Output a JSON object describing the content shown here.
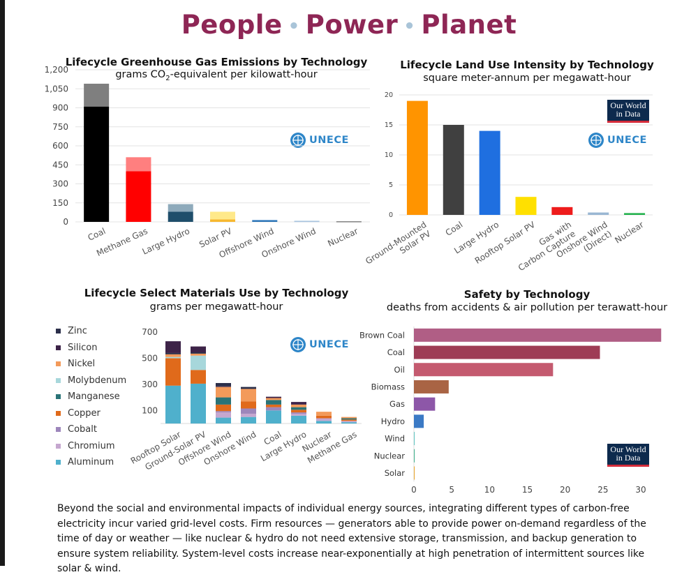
{
  "title": {
    "w1": "People",
    "w2": "Power",
    "w3": "Planet",
    "sep": "•"
  },
  "logos": {
    "unece": "UNECE",
    "owid_line1": "Our World",
    "owid_line2": "in Data"
  },
  "footer": "Beyond the social and environmental impacts of individual energy sources, integrating different types of carbon-free electricity incur varied grid-level costs. Firm resources — generators able to provide power on-demand regardless of the time of day or weather — like nuclear & hydro do not need extensive storage, transmission, and backup generation to ensure system reliability. System-level costs increase near-exponentially at high penetration of intermittent sources like solar & wind.",
  "chart_data": [
    {
      "id": "ghg",
      "type": "bar",
      "title": "Lifecycle Greenhouse Gas Emissions by Technology",
      "subtitle_pre": "grams CO",
      "subtitle_sub": "2",
      "subtitle_post": "-equivalent per kilowatt-hour",
      "categories": [
        "Coal",
        "Methane Gas",
        "Large Hydro",
        "Solar PV",
        "Offshore Wind",
        "Onshore Wind",
        "Nuclear"
      ],
      "series": [
        {
          "name": "low",
          "values": [
            910,
            400,
            80,
            20,
            12,
            7,
            5
          ]
        },
        {
          "name": "range",
          "values": [
            180,
            110,
            60,
            60,
            4,
            4,
            1
          ]
        }
      ],
      "colors_low": [
        "#000000",
        "#ff0000",
        "#1f4e6b",
        "#f7b82f",
        "#2e75b6",
        "#a9c4de",
        "#7f7f7f"
      ],
      "colors_range": [
        "#7f7f7f",
        "#ff7f7f",
        "#8eaabb",
        "#ffe98a",
        "#6fa5d8",
        "#d0e0ee",
        "#bfbfbf"
      ],
      "yticks": [
        "0",
        "150",
        "300",
        "450",
        "600",
        "750",
        "900",
        "1,050",
        "1,200"
      ],
      "ylim": [
        0,
        1200
      ]
    },
    {
      "id": "land",
      "type": "bar",
      "title": "Lifecycle Land Use Intensity by Technology",
      "subtitle": "square meter-annum per megawatt-hour",
      "categories": [
        [
          "Ground-Mounted",
          "Solar PV"
        ],
        [
          "Coal"
        ],
        [
          "Large Hydro"
        ],
        [
          "Rooftop Solar PV"
        ],
        [
          "Gas with",
          "Carbon Capture"
        ],
        [
          "Onshore Wind",
          "(Direct)"
        ],
        [
          "Nuclear"
        ]
      ],
      "values": [
        19,
        15,
        14,
        3,
        1.3,
        0.4,
        0.3
      ],
      "colors": [
        "#ff9400",
        "#404040",
        "#1f6fe0",
        "#ffe000",
        "#ee1c1c",
        "#9ab7d3",
        "#22b14c"
      ],
      "yticks": [
        "0",
        "5",
        "10",
        "15",
        "20"
      ],
      "ylim": [
        0,
        20
      ]
    },
    {
      "id": "materials",
      "type": "stacked-bar",
      "title": "Lifecycle Select Materials Use by Technology",
      "subtitle": "grams per megawatt-hour",
      "categories": [
        "Rooftop Solar",
        "Ground-Solar PV",
        "Offshore Wind",
        "Onshore Wind",
        "Coal",
        "Large Hydro",
        "Nuclear",
        "Methane Gas"
      ],
      "legend_order": [
        "Zinc",
        "Silicon",
        "Nickel",
        "Molybdenum",
        "Manganese",
        "Copper",
        "Cobalt",
        "Chromium",
        "Aluminum"
      ],
      "stack_order": [
        "Aluminum",
        "Chromium",
        "Cobalt",
        "Copper",
        "Manganese",
        "Molybdenum",
        "Nickel",
        "Silicon",
        "Zinc"
      ],
      "colors": {
        "Zinc": "#2b2f4a",
        "Silicon": "#3d2348",
        "Nickel": "#f39a5a",
        "Molybdenum": "#a7d7db",
        "Manganese": "#2a7377",
        "Copper": "#e06a1b",
        "Cobalt": "#9d86bb",
        "Chromium": "#c5a7cf",
        "Aluminum": "#4fb0cc"
      },
      "values": {
        "Rooftop Solar": {
          "Aluminum": 290,
          "Chromium": 0,
          "Cobalt": 0,
          "Copper": 210,
          "Manganese": 0,
          "Molybdenum": 10,
          "Nickel": 20,
          "Silicon": 0,
          "Zinc": 10,
          "Silicon_top": 90
        },
        "Ground-Solar PV": {
          "Aluminum": 305,
          "Chromium": 0,
          "Cobalt": 0,
          "Copper": 105,
          "Manganese": 0,
          "Molybdenum": 110,
          "Nickel": 15,
          "Silicon": 0,
          "Zinc": 10,
          "Silicon_top": 45
        },
        "Offshore Wind": {
          "Aluminum": 45,
          "Chromium": 40,
          "Cobalt": 10,
          "Copper": 50,
          "Manganese": 55,
          "Molybdenum": 0,
          "Nickel": 80,
          "Silicon": 5,
          "Zinc": 25
        },
        "Onshore Wind": {
          "Aluminum": 50,
          "Chromium": 25,
          "Cobalt": 40,
          "Copper": 55,
          "Manganese": 0,
          "Molybdenum": 0,
          "Nickel": 95,
          "Silicon": 0,
          "Zinc": 15
        },
        "Coal": {
          "Aluminum": 100,
          "Chromium": 0,
          "Cobalt": 25,
          "Copper": 20,
          "Manganese": 35,
          "Molybdenum": 0,
          "Nickel": 15,
          "Silicon": 0,
          "Zinc": 0,
          "Silicon_top": 10
        },
        "Large Hydro": {
          "Aluminum": 60,
          "Chromium": 15,
          "Cobalt": 10,
          "Copper": 20,
          "Manganese": 20,
          "Molybdenum": 0,
          "Nickel": 20,
          "Silicon": 0,
          "Zinc": 0,
          "Silicon_top": 20
        },
        "Nuclear": {
          "Aluminum": 20,
          "Chromium": 20,
          "Cobalt": 0,
          "Copper": 20,
          "Manganese": 0,
          "Molybdenum": 0,
          "Nickel": 30,
          "Silicon": 0,
          "Zinc": 0
        },
        "Methane Gas": {
          "Aluminum": 10,
          "Chromium": 10,
          "Cobalt": 0,
          "Copper": 10,
          "Manganese": 10,
          "Molybdenum": 0,
          "Nickel": 10,
          "Silicon": 0,
          "Zinc": 0
        }
      },
      "yticks": [
        "100",
        "300",
        "500",
        "700"
      ],
      "ylim": [
        0,
        700
      ]
    },
    {
      "id": "safety",
      "type": "bar",
      "orientation": "horizontal",
      "title": "Safety by Technology",
      "subtitle": "deaths from accidents & air pollution per terawatt-hour",
      "categories": [
        "Brown Coal",
        "Coal",
        "Oil",
        "Biomass",
        "Gas",
        "Hydro",
        "Wind",
        "Nuclear",
        "Solar"
      ],
      "values": [
        32.7,
        24.6,
        18.4,
        4.6,
        2.8,
        1.3,
        0.04,
        0.03,
        0.02
      ],
      "colors": [
        "#b05e85",
        "#9e3c55",
        "#c45a6f",
        "#a96444",
        "#8d57a8",
        "#3b7ac5",
        "#5ec3c0",
        "#3cae8a",
        "#e8a42a"
      ],
      "xticks": [
        "0",
        "5",
        "10",
        "15",
        "20",
        "25",
        "30"
      ],
      "xlim": [
        0,
        33
      ]
    }
  ]
}
